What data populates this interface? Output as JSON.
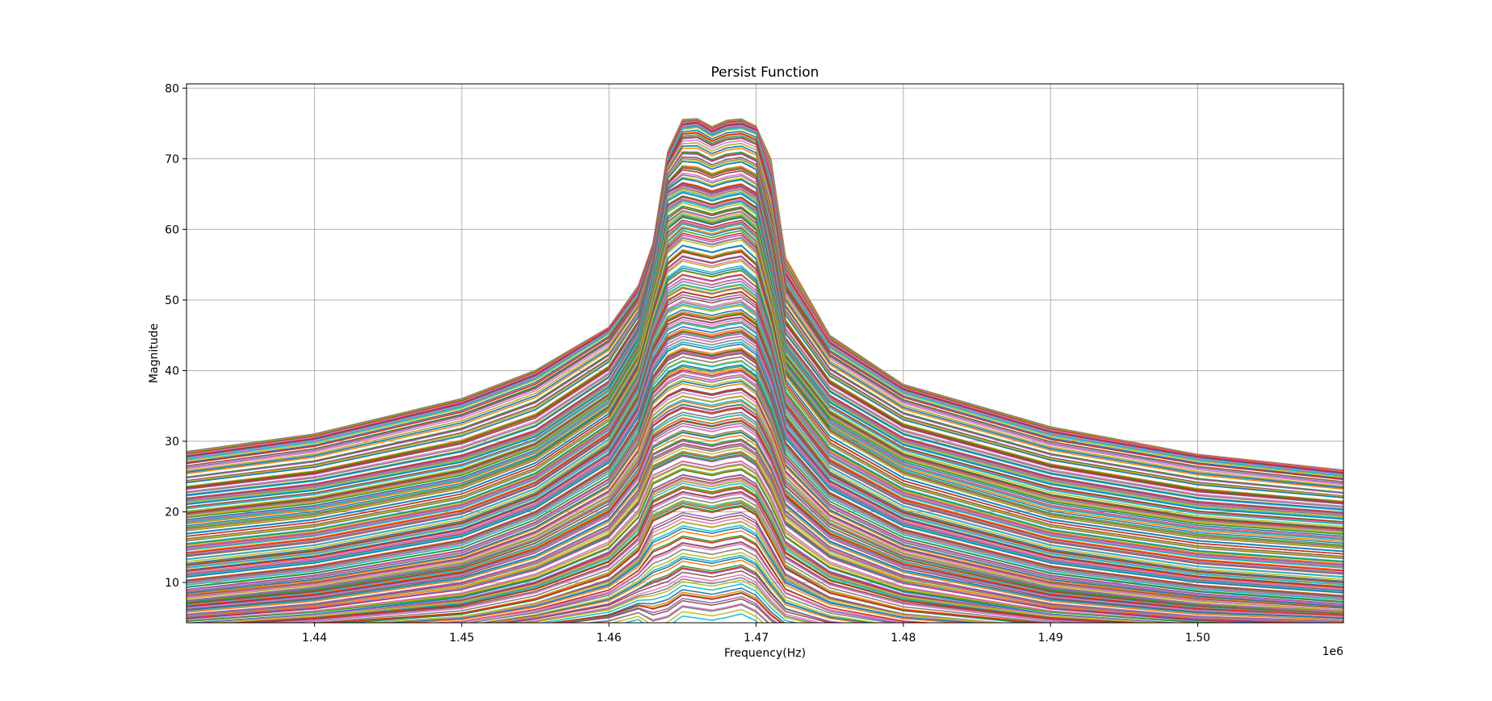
{
  "chart_data": {
    "type": "line",
    "title": "Persist Function",
    "xlabel": "Frequency(Hz)",
    "ylabel": "Magnitude",
    "x_offset_label": "1e6",
    "xlim": [
      1.4313,
      1.5099
    ],
    "ylim": [
      4.3,
      80.6
    ],
    "x_ticks": [
      1.44,
      1.45,
      1.46,
      1.47,
      1.48,
      1.49,
      1.5
    ],
    "x_tick_labels": [
      "1.44",
      "1.45",
      "1.46",
      "1.47",
      "1.48",
      "1.49",
      "1.50"
    ],
    "y_ticks": [
      10,
      20,
      30,
      40,
      50,
      60,
      70,
      80
    ],
    "y_tick_labels": [
      "10",
      "20",
      "30",
      "40",
      "50",
      "60",
      "70",
      "80"
    ],
    "grid": true,
    "legend": "none",
    "n_series_approx": 300,
    "x": [
      1.4313,
      1.44,
      1.45,
      1.455,
      1.46,
      1.462,
      1.463,
      1.464,
      1.465,
      1.466,
      1.467,
      1.468,
      1.469,
      1.47,
      1.471,
      1.472,
      1.475,
      1.48,
      1.49,
      1.5,
      1.5099
    ],
    "envelope_series": [
      {
        "values": [
          28.5,
          31,
          36,
          40,
          46,
          52,
          58,
          71,
          75.5,
          75.6,
          74.5,
          75.4,
          75.6,
          74.5,
          70,
          56,
          45,
          38,
          32,
          28,
          25.8
        ]
      },
      {
        "values": [
          27.5,
          30,
          35,
          39,
          45.5,
          51,
          57,
          70,
          74.5,
          74.8,
          73.5,
          74.4,
          74.6,
          73.8,
          67,
          53,
          43.5,
          37,
          31,
          27.5,
          25.2
        ]
      },
      {
        "values": [
          21.5,
          23.5,
          27.5,
          31,
          38,
          45,
          54,
          65,
          66,
          65.5,
          64.8,
          65.4,
          65.8,
          64.5,
          55,
          44,
          36,
          30,
          24.5,
          21,
          19.5
        ]
      },
      {
        "values": [
          18,
          20,
          24,
          28,
          35,
          42,
          50,
          58,
          60,
          59.5,
          59,
          59.6,
          60,
          58,
          50,
          40,
          32,
          26,
          20,
          17,
          15.5
        ]
      },
      {
        "values": [
          13,
          15,
          19,
          23,
          30,
          37,
          44,
          48,
          49,
          48.6,
          48.2,
          48.7,
          49,
          47.5,
          42,
          34,
          26,
          20.5,
          15,
          12,
          10.5
        ]
      },
      {
        "values": [
          8.5,
          10.5,
          14,
          18,
          24,
          30,
          36,
          38,
          39,
          38.6,
          38.2,
          38.7,
          39,
          37.5,
          33,
          27,
          20.5,
          15.5,
          10.5,
          8,
          6.5
        ]
      },
      {
        "values": [
          5.5,
          7,
          10,
          13,
          18,
          23,
          28,
          29,
          30,
          29.6,
          29.2,
          29.7,
          30,
          28.6,
          25,
          20,
          15,
          11,
          7,
          5.2,
          4.5
        ]
      },
      {
        "values": [
          3,
          4,
          5.5,
          7.5,
          11,
          14.5,
          19,
          20,
          21,
          20.6,
          20.2,
          20.7,
          21,
          19.8,
          16,
          12,
          8.5,
          6,
          4,
          3,
          2.6
        ]
      },
      {
        "values": [
          1,
          1.5,
          2,
          3,
          4,
          5,
          3.5,
          4,
          5.5,
          5.2,
          4.9,
          5.3,
          5.8,
          4.8,
          3,
          2,
          1.5,
          1,
          0.8,
          0.6,
          0.5
        ]
      }
    ],
    "palette": [
      "#1f77b4",
      "#ff7f0e",
      "#2ca02c",
      "#d62728",
      "#9467bd",
      "#8c564b",
      "#e377c2",
      "#7f7f7f",
      "#bcbd22",
      "#17becf"
    ]
  }
}
